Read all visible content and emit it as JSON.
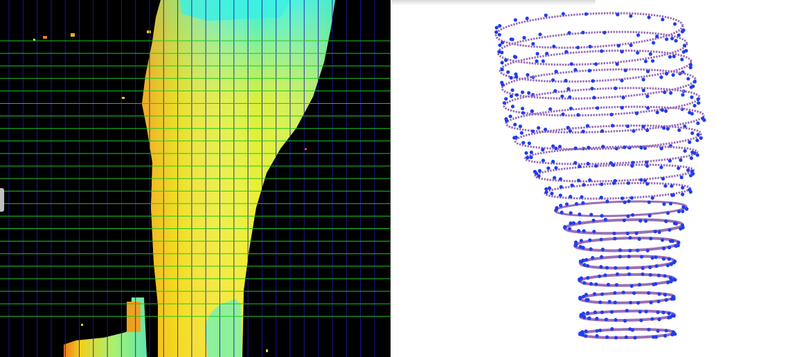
{
  "depth_view": {
    "palette": {
      "background": "#000000",
      "vertical_grid": "#1a1aa8",
      "horizontal_grid": "#1ec81e",
      "low": "#2ef2e8",
      "mid": "#c8f040",
      "high": "#f0e020",
      "hot": "#f07a1a"
    },
    "vertical_line_count": 27,
    "horizontal_line_count": 23
  },
  "point_cloud_view": {
    "palette": {
      "ring": "#9b6fb8",
      "points": "#1f3df0"
    },
    "ring_count": 18
  }
}
